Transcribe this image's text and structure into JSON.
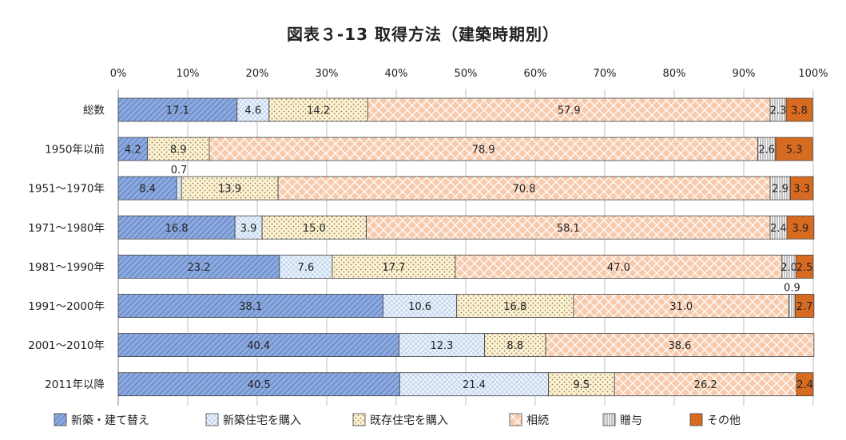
{
  "chart_data": {
    "type": "bar",
    "orientation": "horizontal",
    "stacked": "percent",
    "title": "図表３-13 取得方法（建築時期別）",
    "xlim": [
      0,
      100
    ],
    "x_ticks": [
      "0%",
      "10%",
      "20%",
      "30%",
      "40%",
      "50%",
      "60%",
      "70%",
      "80%",
      "90%",
      "100%"
    ],
    "grid": true,
    "legend_position": "bottom",
    "categories": [
      "総数",
      "1950年以前",
      "1951～1970年",
      "1971～1980年",
      "1981～1990年",
      "1991～2000年",
      "2001～2010年",
      "2011年以降"
    ],
    "series": [
      {
        "name": "新築・建て替え",
        "color": "#8EA9DB",
        "pattern": "diagonal-lines",
        "values": [
          17.1,
          4.2,
          8.4,
          16.8,
          23.2,
          38.1,
          40.4,
          40.5
        ],
        "labels": [
          "17.1",
          "4.2",
          "8.4",
          "16.8",
          "23.2",
          "38.1",
          "40.4",
          "40.5"
        ]
      },
      {
        "name": "新築住宅を購入",
        "color": "#DDEBF7",
        "pattern": "checker",
        "values": [
          4.6,
          0,
          0.7,
          3.9,
          7.6,
          10.6,
          12.3,
          21.4
        ],
        "labels": [
          "4.6",
          "",
          "0.7",
          "3.9",
          "7.6",
          "10.6",
          "12.3",
          "21.4"
        ]
      },
      {
        "name": "既存住宅を購入",
        "color": "#FFF2CC",
        "pattern": "dots",
        "values": [
          14.2,
          8.9,
          13.9,
          15.0,
          17.7,
          16.8,
          8.8,
          9.5
        ],
        "labels": [
          "14.2",
          "8.9",
          "13.9",
          "15.0",
          "17.7",
          "16.8",
          "8.8",
          "9.5"
        ]
      },
      {
        "name": "相続",
        "color": "#F8CBAD",
        "pattern": "lattice",
        "values": [
          57.9,
          78.9,
          70.8,
          58.1,
          47.0,
          31.0,
          38.6,
          26.2
        ],
        "labels": [
          "57.9",
          "78.9",
          "70.8",
          "58.1",
          "47.0",
          "31.0",
          "38.6",
          "26.2"
        ]
      },
      {
        "name": "贈与",
        "color": "#FFFFFF",
        "pattern": "vertical-lines",
        "values": [
          2.3,
          2.6,
          2.9,
          2.4,
          2.0,
          0.9,
          0,
          0
        ],
        "labels": [
          "2.3",
          "2.6",
          "2.9",
          "2.4",
          "2.0",
          "0.9",
          "",
          ""
        ]
      },
      {
        "name": "その他",
        "color": "#F4B183",
        "pattern": "grid-dark",
        "values": [
          3.8,
          5.3,
          3.3,
          3.9,
          2.5,
          2.7,
          0,
          2.4
        ],
        "labels": [
          "3.8",
          "5.3",
          "3.3",
          "3.9",
          "2.5",
          "2.7",
          "",
          "2.4"
        ]
      }
    ]
  }
}
